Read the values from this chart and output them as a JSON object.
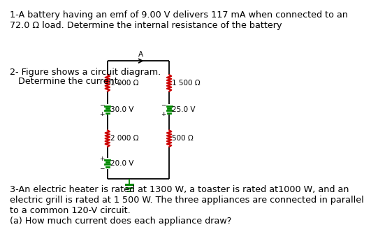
{
  "background_color": "#ffffff",
  "text1": "1-A battery having an emf of 9.00 V delivers 117 mA when connected to an\n72.0 Ω load. Determine the internal resistance of the battery",
  "text2_line1": "2- Figure shows a circuit diagram.",
  "text2_line2": "   Determine the current,",
  "text3": "3-An electric heater is rated at 1300 W, a toaster is rated at1000 W, and an\nelectric grill is rated at 1 500 W. The three appliances are connected in parallel\nto a common 120-V circuit.\n(a) How much current does each appliance draw?",
  "resistor_color": "#cc0000",
  "battery_color": "#008800",
  "wire_color": "#000000",
  "label_color": "#000000",
  "circuit_labels": {
    "R1": "1 000 Ω",
    "R2": "1 500 Ω",
    "V1": "30.0 V",
    "V2": "25.0 V",
    "R3": "2 000 Ω",
    "R4": "500 Ω",
    "V3": "20.0 V",
    "node_A": "A"
  },
  "font_size_text": 9.2,
  "font_size_circuit": 7.5
}
